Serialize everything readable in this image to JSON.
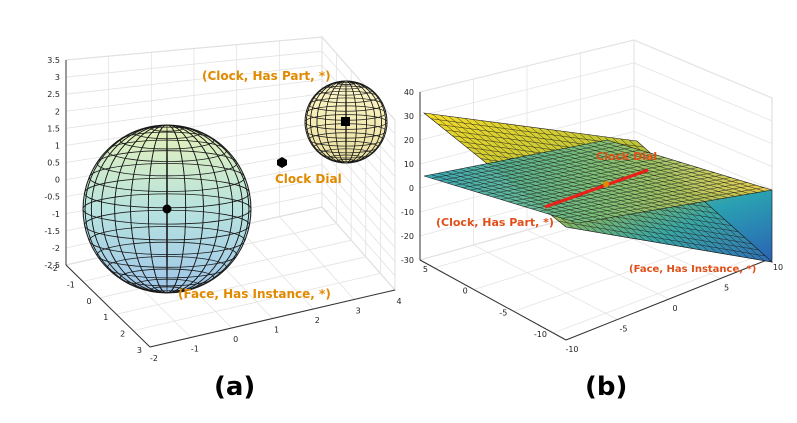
{
  "panel_a": {
    "labels": {
      "clock_has_part": "(Clock, Has Part, *)",
      "clock_dial": "Clock Dial",
      "face_has_instance": "(Face, Has Instance, *)"
    },
    "z_ticks": [
      "3.5",
      "3",
      "2.5",
      "2",
      "1.5",
      "1",
      "0.5",
      "0",
      "-0.5",
      "-1",
      "-1.5",
      "-2",
      "-2.5"
    ],
    "y_ticks": [
      "-2",
      "-1",
      "0",
      "1",
      "2",
      "3"
    ],
    "x_ticks": [
      "-2",
      "-1",
      "0",
      "1",
      "2",
      "3",
      "4"
    ]
  },
  "panel_b": {
    "labels": {
      "clock_dial": "Clock Dial",
      "clock_has_part": "(Clock, Has Part, *)",
      "face_has_instance": "(Face, Has Instance, *)"
    },
    "z_ticks": [
      "40",
      "30",
      "20",
      "10",
      "0",
      "-10",
      "-20",
      "-30"
    ],
    "y_ticks": [
      "5",
      "0",
      "-5",
      "-10"
    ],
    "x_ticks": [
      "-10",
      "-5",
      "0",
      "5",
      "10"
    ]
  },
  "captions": {
    "a": "(a)",
    "b": "(b)"
  },
  "colors": {
    "label_orange": "#e08a00",
    "label_red_orange": "#e0501a",
    "intersection_line": "#e8211a"
  }
}
